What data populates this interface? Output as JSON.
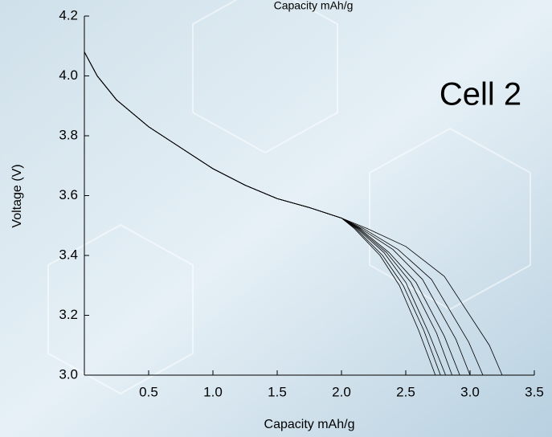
{
  "chart_data": {
    "type": "line",
    "title": "Capacity mAh/g",
    "x_label": "Capacity mAh/g",
    "y_label": "Voltage (V)",
    "annotation": "Cell 2",
    "xlim": [
      0,
      3.5
    ],
    "ylim": [
      3.0,
      4.2
    ],
    "xticks": [
      0.5,
      {
        "value": 1,
        "label": "1.0"
      },
      1.5,
      {
        "value": 2,
        "label": "2.0"
      },
      2.5,
      {
        "value": 3,
        "label": "3.0"
      },
      3.5
    ],
    "yticks": [
      {
        "value": 3,
        "label": "3.0"
      },
      3.2,
      3.4,
      3.6,
      3.8,
      {
        "value": 4,
        "label": "4.0"
      },
      4.2
    ],
    "series": [
      {
        "color": "#000000",
        "x": [
          0,
          0.1,
          0.25,
          0.5,
          0.75,
          1,
          1.25,
          1.5,
          1.75,
          2,
          2.1,
          2.3,
          2.45,
          2.6,
          2.73
        ],
        "values": [
          4.08,
          4.0,
          3.92,
          3.83,
          3.76,
          3.69,
          3.635,
          3.59,
          3.56,
          3.525,
          3.49,
          3.4,
          3.3,
          3.15,
          3.0
        ]
      },
      {
        "color": "#000000",
        "x": [
          0,
          0.1,
          0.25,
          0.5,
          0.75,
          1,
          1.25,
          1.5,
          1.75,
          2,
          2.11,
          2.32,
          2.48,
          2.64,
          2.77
        ],
        "values": [
          4.08,
          4.0,
          3.92,
          3.83,
          3.76,
          3.69,
          3.635,
          3.59,
          3.56,
          3.525,
          3.49,
          3.4,
          3.3,
          3.15,
          3.0
        ]
      },
      {
        "color": "#000000",
        "x": [
          0,
          0.1,
          0.25,
          0.5,
          0.75,
          1,
          1.25,
          1.5,
          1.75,
          2,
          2.12,
          2.33,
          2.5,
          2.68,
          2.81
        ],
        "values": [
          4.08,
          4.0,
          3.92,
          3.83,
          3.76,
          3.69,
          3.635,
          3.59,
          3.56,
          3.525,
          3.49,
          3.41,
          3.31,
          3.14,
          3.0
        ]
      },
      {
        "color": "#000000",
        "x": [
          0,
          0.1,
          0.25,
          0.5,
          0.75,
          1,
          1.25,
          1.5,
          1.75,
          2,
          2.13,
          2.35,
          2.54,
          2.74,
          2.86
        ],
        "values": [
          4.08,
          4.0,
          3.92,
          3.83,
          3.76,
          3.69,
          3.635,
          3.59,
          3.56,
          3.525,
          3.49,
          3.41,
          3.31,
          3.14,
          3.0
        ]
      },
      {
        "color": "#000000",
        "x": [
          0,
          0.1,
          0.25,
          0.5,
          0.75,
          1,
          1.25,
          1.5,
          1.75,
          2,
          2.14,
          2.37,
          2.58,
          2.8,
          2.92
        ],
        "values": [
          4.08,
          4.0,
          3.92,
          3.83,
          3.76,
          3.69,
          3.635,
          3.59,
          3.56,
          3.525,
          3.49,
          3.41,
          3.31,
          3.13,
          3.0
        ]
      },
      {
        "color": "#000000",
        "x": [
          0,
          0.1,
          0.25,
          0.5,
          0.75,
          1,
          1.25,
          1.5,
          1.75,
          2,
          2.15,
          2.4,
          2.63,
          2.89,
          3.0
        ],
        "values": [
          4.08,
          4.0,
          3.92,
          3.83,
          3.76,
          3.69,
          3.635,
          3.59,
          3.56,
          3.525,
          3.49,
          3.42,
          3.32,
          3.12,
          3.0
        ]
      },
      {
        "color": "#000000",
        "x": [
          0,
          0.1,
          0.25,
          0.5,
          0.75,
          1,
          1.25,
          1.5,
          1.75,
          2,
          2.17,
          2.44,
          2.7,
          2.99,
          3.1
        ],
        "values": [
          4.08,
          4.0,
          3.92,
          3.83,
          3.76,
          3.69,
          3.635,
          3.59,
          3.56,
          3.525,
          3.49,
          3.42,
          3.32,
          3.11,
          3.0
        ]
      },
      {
        "color": "#000000",
        "x": [
          0,
          0.1,
          0.25,
          0.5,
          0.75,
          1,
          1.25,
          1.5,
          1.75,
          2,
          2.2,
          2.5,
          2.8,
          3.15,
          3.25
        ],
        "values": [
          4.08,
          4.0,
          3.92,
          3.83,
          3.76,
          3.69,
          3.635,
          3.59,
          3.56,
          3.525,
          3.49,
          3.43,
          3.33,
          3.1,
          3.0
        ]
      }
    ]
  }
}
